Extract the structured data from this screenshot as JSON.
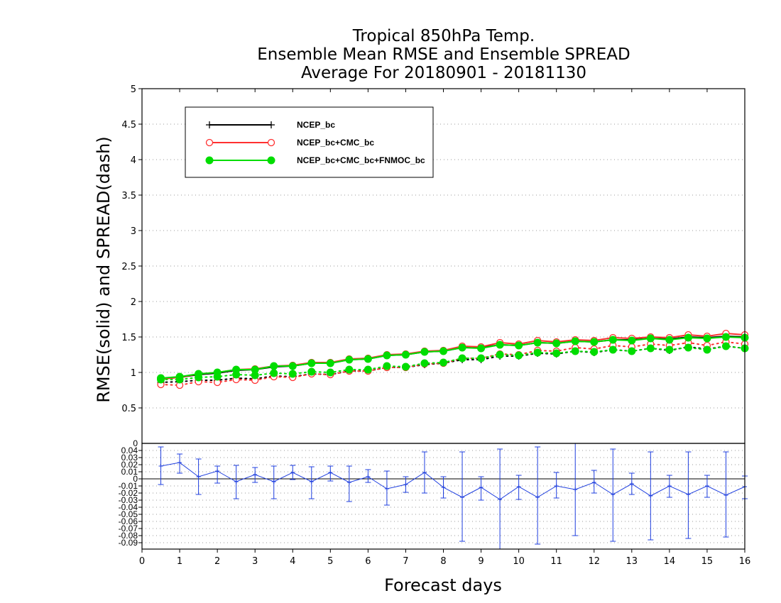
{
  "chart_data": [
    {
      "type": "line",
      "title": [
        "Tropical 850hPa Temp.",
        "Ensemble Mean RMSE and Ensemble SPREAD",
        "Average For 20180901 - 20181130"
      ],
      "xlabel": "Forecast days",
      "ylabel": "RMSE(solid) and SPREAD(dash)",
      "xlim": [
        0,
        16
      ],
      "ylim": [
        0,
        5
      ],
      "xticks": [
        "0",
        "1",
        "2",
        "3",
        "4",
        "5",
        "6",
        "7",
        "8",
        "9",
        "10",
        "11",
        "12",
        "13",
        "14",
        "15",
        "16"
      ],
      "yticks": [
        "0.5",
        "1",
        "1.5",
        "2",
        "2.5",
        "3",
        "3.5",
        "4",
        "4.5",
        "5"
      ],
      "grid": true,
      "legend_position": "top-left",
      "x": [
        0.5,
        1,
        1.5,
        2,
        2.5,
        3,
        3.5,
        4,
        4.5,
        5,
        5.5,
        6,
        6.5,
        7,
        7.5,
        8,
        8.5,
        9,
        9.5,
        10,
        10.5,
        11,
        11.5,
        12,
        12.5,
        13,
        13.5,
        14,
        14.5,
        15,
        15.5,
        16
      ],
      "series": [
        {
          "name": "NCEP_bc",
          "color": "#000000",
          "marker": "plus",
          "rmse": [
            0.91,
            0.93,
            0.97,
            0.99,
            1.03,
            1.04,
            1.08,
            1.09,
            1.13,
            1.13,
            1.18,
            1.19,
            1.24,
            1.25,
            1.29,
            1.3,
            1.35,
            1.35,
            1.39,
            1.38,
            1.42,
            1.41,
            1.44,
            1.43,
            1.46,
            1.46,
            1.48,
            1.47,
            1.5,
            1.49,
            1.51,
            1.5
          ],
          "spread": [
            0.86,
            0.87,
            0.89,
            0.89,
            0.92,
            0.91,
            0.95,
            0.94,
            0.98,
            0.97,
            1.02,
            1.02,
            1.07,
            1.07,
            1.11,
            1.13,
            1.18,
            1.18,
            1.23,
            1.23,
            1.27,
            1.26,
            1.3,
            1.28,
            1.32,
            1.3,
            1.34,
            1.31,
            1.36,
            1.33,
            1.37,
            1.34
          ]
        },
        {
          "name": "NCEP_bc+CMC_bc",
          "color": "#ff3030",
          "marker": "open-circle",
          "rmse": [
            0.91,
            0.93,
            0.98,
            1.0,
            1.04,
            1.05,
            1.09,
            1.1,
            1.14,
            1.14,
            1.19,
            1.2,
            1.25,
            1.26,
            1.3,
            1.31,
            1.37,
            1.36,
            1.42,
            1.4,
            1.45,
            1.43,
            1.46,
            1.45,
            1.49,
            1.48,
            1.5,
            1.49,
            1.53,
            1.51,
            1.55,
            1.53
          ],
          "spread": [
            0.83,
            0.82,
            0.87,
            0.86,
            0.9,
            0.89,
            0.94,
            0.93,
            0.98,
            0.97,
            1.02,
            1.02,
            1.07,
            1.07,
            1.12,
            1.13,
            1.2,
            1.2,
            1.26,
            1.25,
            1.31,
            1.3,
            1.35,
            1.33,
            1.38,
            1.36,
            1.4,
            1.38,
            1.42,
            1.38,
            1.43,
            1.4
          ]
        },
        {
          "name": "NCEP_bc+CMC_bc+FNMOC_bc",
          "color": "#00dd00",
          "marker": "filled-circle",
          "rmse": [
            0.92,
            0.94,
            0.98,
            1.0,
            1.04,
            1.04,
            1.09,
            1.09,
            1.13,
            1.13,
            1.18,
            1.19,
            1.24,
            1.25,
            1.29,
            1.3,
            1.35,
            1.34,
            1.39,
            1.38,
            1.42,
            1.41,
            1.44,
            1.43,
            1.46,
            1.45,
            1.48,
            1.46,
            1.49,
            1.48,
            1.5,
            1.49
          ],
          "spread": [
            0.9,
            0.9,
            0.93,
            0.94,
            0.97,
            0.96,
            0.99,
            0.98,
            1.01,
            1.0,
            1.04,
            1.04,
            1.09,
            1.08,
            1.13,
            1.14,
            1.2,
            1.2,
            1.25,
            1.24,
            1.28,
            1.27,
            1.3,
            1.29,
            1.32,
            1.3,
            1.34,
            1.32,
            1.35,
            1.32,
            1.37,
            1.34
          ]
        }
      ]
    },
    {
      "type": "line",
      "xlabel": "Forecast days",
      "xlim": [
        0,
        16
      ],
      "ylim": [
        -0.095,
        0.05
      ],
      "yticks": [
        "0.04",
        "0.03",
        "0.02",
        "0.01",
        "0",
        "-0.01",
        "-0.02",
        "-0.03",
        "-0.04",
        "-0.05",
        "-0.06",
        "-0.07",
        "-0.08",
        "-0.09"
      ],
      "grid": true,
      "reference_line": 0,
      "series": [
        {
          "color": "#1f3fdf",
          "x": [
            0.5,
            1,
            1.5,
            2,
            2.5,
            3,
            3.5,
            4,
            4.5,
            5,
            5.5,
            6,
            6.5,
            7,
            7.5,
            8,
            8.5,
            9,
            9.5,
            10,
            10.5,
            11,
            11.5,
            12,
            12.5,
            13,
            13.5,
            14,
            14.5,
            15,
            15.5,
            16
          ],
          "values": [
            0.018,
            0.023,
            0.003,
            0.011,
            -0.004,
            0.006,
            -0.004,
            0.009,
            -0.004,
            0.009,
            -0.005,
            0.003,
            -0.014,
            -0.008,
            0.009,
            -0.012,
            -0.026,
            -0.012,
            -0.029,
            -0.011,
            -0.026,
            -0.01,
            -0.015,
            -0.005,
            -0.022,
            -0.007,
            -0.024,
            -0.01,
            -0.022,
            -0.01,
            -0.023,
            -0.011
          ],
          "error_low": [
            -0.008,
            0.008,
            -0.022,
            -0.006,
            -0.028,
            -0.005,
            -0.028,
            -0.001,
            -0.028,
            -0.003,
            -0.032,
            -0.005,
            -0.037,
            -0.019,
            -0.02,
            -0.027,
            -0.088,
            -0.03,
            -0.1,
            -0.029,
            -0.092,
            -0.027,
            -0.08,
            -0.02,
            -0.088,
            -0.022,
            -0.086,
            -0.026,
            -0.084,
            -0.026,
            -0.082,
            -0.028
          ],
          "error_high": [
            0.045,
            0.035,
            0.028,
            0.018,
            0.019,
            0.016,
            0.018,
            0.019,
            0.017,
            0.018,
            0.018,
            0.013,
            0.011,
            0.003,
            0.038,
            0.003,
            0.038,
            0.003,
            0.042,
            0.005,
            0.045,
            0.009,
            0.06,
            0.012,
            0.042,
            0.008,
            0.038,
            0.005,
            0.038,
            0.005,
            0.038,
            0.004
          ]
        }
      ]
    }
  ]
}
